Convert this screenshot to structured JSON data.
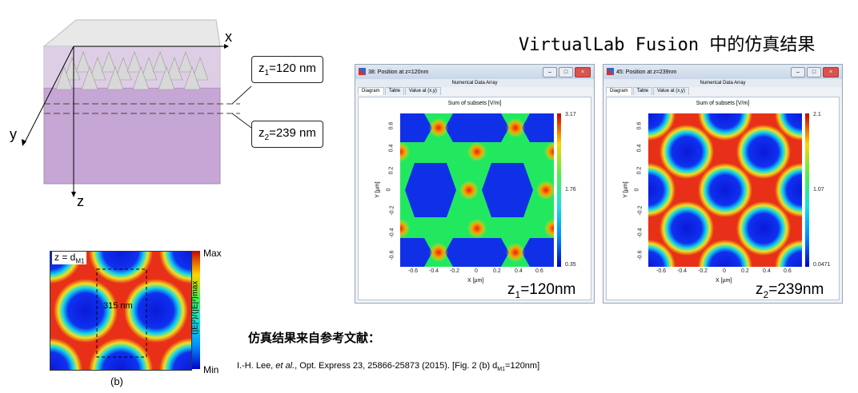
{
  "headline": "VirtualLab Fusion 中的仿真结果",
  "schematic": {
    "axis_x": "x",
    "axis_y": "y",
    "axis_z": "z",
    "callout1": {
      "prefix": "z",
      "sub": "1",
      "value": "=120 nm"
    },
    "callout2": {
      "prefix": "z",
      "sub": "2",
      "value": "=239 nm"
    }
  },
  "reference_plot": {
    "label_prefix": "z = d",
    "label_sub": "M1",
    "scale_label": "315 nm",
    "colorbar_max": "Max",
    "colorbar_min": "Min",
    "colorbar_title": "⟨|E|²⟩/⟨|E|²⟩max",
    "caption": "(b)"
  },
  "windows": [
    {
      "title": "38: Position at z=120nm",
      "header": "Numerical Data Array",
      "tabs": [
        "Diagram",
        "Table",
        "Value at (x,y)"
      ],
      "plot_title": "Sum of subsets  [V/m]",
      "colorbar_ticks": [
        "3.17",
        "1.76",
        "0.35"
      ],
      "x_ticks": [
        "-0.6",
        "-0.4",
        "-0.2",
        "0",
        "0.2",
        "0.4",
        "0.6"
      ],
      "y_ticks": [
        "0.6",
        "0.4",
        "0.2",
        "0",
        "-0.2",
        "-0.4",
        "-0.6"
      ],
      "xlabel": "X [µm]",
      "ylabel": "Y [µm]",
      "label_prefix": "z",
      "label_sub": "1",
      "label_value": "=120nm"
    },
    {
      "title": "45: Position at z=239nm",
      "header": "Numerical Data Array",
      "tabs": [
        "Diagram",
        "Table",
        "Value at (x,y)"
      ],
      "plot_title": "Sum of subsets  [V/m]",
      "colorbar_ticks": [
        "2.1",
        "1.07",
        "0.0471"
      ],
      "x_ticks": [
        "-0.6",
        "-0.4",
        "-0.2",
        "0",
        "0.2",
        "0.4",
        "0.6"
      ],
      "y_ticks": [
        "0.6",
        "0.4",
        "0.2",
        "0",
        "-0.2",
        "-0.4",
        "-0.6"
      ],
      "xlabel": "X [µm]",
      "ylabel": "Y [µm]",
      "label_prefix": "z",
      "label_sub": "2",
      "label_value": "=239nm"
    }
  ],
  "source_heading": "仿真结果来自参考文献：",
  "citation": {
    "authors": "I.-H. Lee, ",
    "etal": "et al.",
    "rest": ", Opt. Express 23, 25866-25873 (2015). [Fig. 2 (b) d",
    "sub": "M1",
    "tail": "=120nm]"
  },
  "colors": {
    "blue": "#1f2fd8",
    "red": "#e01b10",
    "accent_purple": "#c9a8d8"
  }
}
